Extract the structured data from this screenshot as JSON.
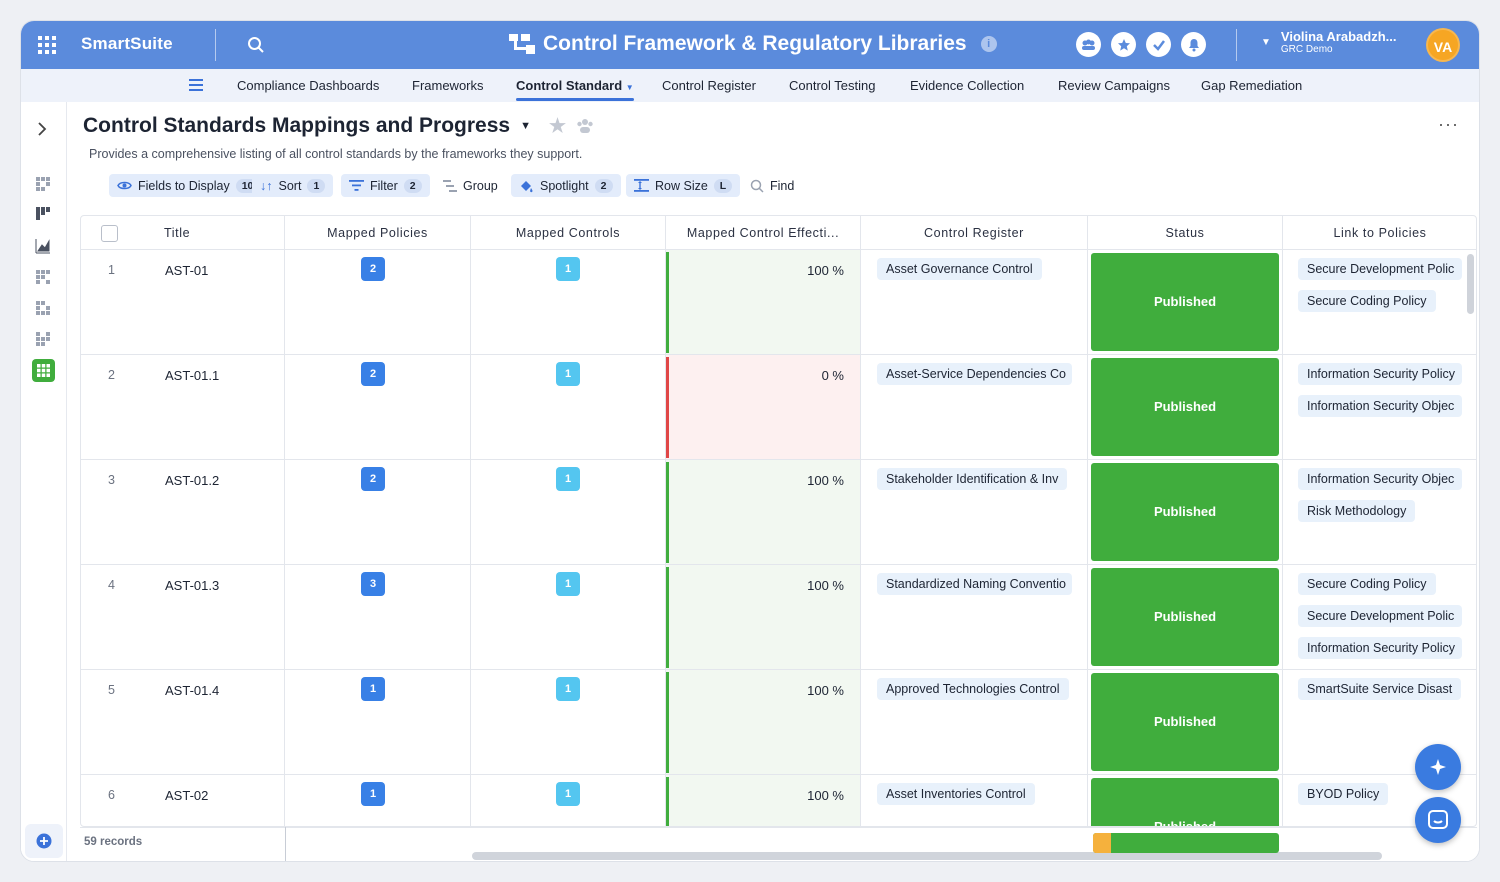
{
  "app": {
    "brand": "SmartSuite",
    "solution": "Control Framework & Regulatory Libraries",
    "info_icon": "i"
  },
  "user": {
    "name": "Violina Arabadzh...",
    "org": "GRC Demo",
    "initials": "VA"
  },
  "tabs": [
    "Compliance Dashboards",
    "Frameworks",
    "Control Standard",
    "Control Register",
    "Control Testing",
    "Evidence Collection",
    "Review Campaigns",
    "Gap Remediation"
  ],
  "page": {
    "title": "Control Standards Mappings and Progress",
    "description": "Provides a comprehensive listing of all control standards by the frameworks they support.",
    "more": "···"
  },
  "toolbar": {
    "fields": "Fields to Display",
    "fields_count": "10",
    "sort": "Sort",
    "sort_count": "1",
    "filter": "Filter",
    "filter_count": "2",
    "group": "Group",
    "spotlight": "Spotlight",
    "spotlight_count": "2",
    "rowsize": "Row Size",
    "rowsize_value": "L",
    "find": "Find"
  },
  "columns": [
    "Title",
    "Mapped Policies",
    "Mapped Controls",
    "Mapped Control Effecti...",
    "Control Register",
    "Status",
    "Link to Policies"
  ],
  "rows": [
    {
      "n": "1",
      "title": "AST-01",
      "policies": "2",
      "controls": "1",
      "eff": "100 %",
      "eff_ok": true,
      "register": "Asset Governance Control",
      "status": "Published",
      "links": [
        "Secure Development Polic",
        "Secure Coding Policy"
      ]
    },
    {
      "n": "2",
      "title": "AST-01.1",
      "policies": "2",
      "controls": "1",
      "eff": "0 %",
      "eff_ok": false,
      "register": "Asset-Service Dependencies Co",
      "status": "Published",
      "links": [
        "Information Security Policy",
        "Information Security Objec"
      ]
    },
    {
      "n": "3",
      "title": "AST-01.2",
      "policies": "2",
      "controls": "1",
      "eff": "100 %",
      "eff_ok": true,
      "register": "Stakeholder Identification & Inv",
      "status": "Published",
      "links": [
        "Information Security Objec",
        "Risk Methodology"
      ]
    },
    {
      "n": "4",
      "title": "AST-01.3",
      "policies": "3",
      "controls": "1",
      "eff": "100 %",
      "eff_ok": true,
      "register": "Standardized Naming Conventio",
      "status": "Published",
      "links": [
        "Secure Coding Policy",
        "Secure Development Polic",
        "Information Security Policy"
      ]
    },
    {
      "n": "5",
      "title": "AST-01.4",
      "policies": "1",
      "controls": "1",
      "eff": "100 %",
      "eff_ok": true,
      "register": "Approved Technologies Control",
      "status": "Published",
      "links": [
        "SmartSuite Service Disast"
      ]
    },
    {
      "n": "6",
      "title": "AST-02",
      "policies": "1",
      "controls": "1",
      "eff": "100 %",
      "eff_ok": true,
      "register": "Asset Inventories Control",
      "status": "Published",
      "links": [
        "BYOD Policy"
      ]
    }
  ],
  "footer": {
    "records": "59 records"
  },
  "colors": {
    "primary": "#5b8bdc",
    "published": "#40ad3d",
    "effective_bar": "#40ad3d",
    "ineffective_bar": "#e04646"
  }
}
